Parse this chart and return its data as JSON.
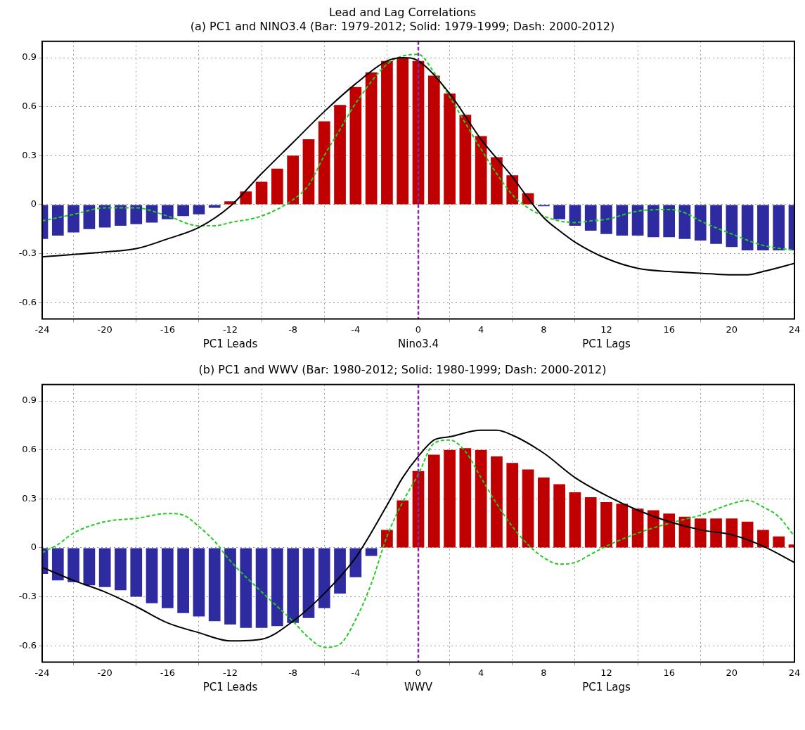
{
  "chart_data": [
    {
      "type": "bar",
      "title": "Lead and Lag Correlations",
      "subtitle": "(a) PC1 and NINO3.4 (Bar: 1979-2012; Solid: 1979-1999; Dash: 2000-2012)",
      "xlabel": "Nino3.4",
      "annotations": [
        "PC1 Leads",
        "PC1 Lags"
      ],
      "x": [
        -24,
        -23,
        -22,
        -21,
        -20,
        -19,
        -18,
        -17,
        -16,
        -15,
        -14,
        -13,
        -12,
        -11,
        -10,
        -9,
        -8,
        -7,
        -6,
        -5,
        -4,
        -3,
        -2,
        -1,
        0,
        1,
        2,
        3,
        4,
        5,
        6,
        7,
        8,
        9,
        10,
        11,
        12,
        13,
        14,
        15,
        16,
        17,
        18,
        19,
        20,
        21,
        22,
        23,
        24
      ],
      "series": [
        {
          "values": [
            -0.21,
            -0.19,
            -0.17,
            -0.15,
            -0.14,
            -0.13,
            -0.12,
            -0.11,
            -0.09,
            -0.07,
            -0.06,
            -0.02,
            0.02,
            0.08,
            0.14,
            0.22,
            0.3,
            0.4,
            0.51,
            0.61,
            0.72,
            0.81,
            0.88,
            0.9,
            0.88,
            0.79,
            0.68,
            0.55,
            0.42,
            0.29,
            0.18,
            0.07,
            -0.01,
            -0.09,
            -0.13,
            -0.16,
            -0.18,
            -0.19,
            -0.19,
            -0.2,
            -0.2,
            -0.21,
            -0.22,
            -0.24,
            -0.26,
            -0.28,
            -0.28,
            -0.28,
            -0.28
          ],
          "colors": [
            "#2e2aa0",
            "#2e2aa0",
            "#2e2aa0",
            "#2e2aa0",
            "#2e2aa0",
            "#2e2aa0",
            "#2e2aa0",
            "#2e2aa0",
            "#2e2aa0",
            "#2e2aa0",
            "#2e2aa0",
            "#2e2aa0",
            "#c00000",
            "#c00000",
            "#c00000",
            "#c00000",
            "#c00000",
            "#c00000",
            "#c00000",
            "#c00000",
            "#c00000",
            "#c00000",
            "#c00000",
            "#c00000",
            "#c00000",
            "#c00000",
            "#c00000",
            "#c00000",
            "#c00000",
            "#c00000",
            "#c00000",
            "#c00000",
            "#2e2aa0",
            "#2e2aa0",
            "#2e2aa0",
            "#2e2aa0",
            "#2e2aa0",
            "#2e2aa0",
            "#2e2aa0",
            "#2e2aa0",
            "#2e2aa0",
            "#2e2aa0",
            "#2e2aa0",
            "#2e2aa0",
            "#2e2aa0",
            "#2e2aa0",
            "#2e2aa0",
            "#2e2aa0",
            "#2e2aa0"
          ]
        },
        {
          "type": "line",
          "color": "#000000",
          "line_style": "solid",
          "x": [
            -24,
            -20,
            -18,
            -16,
            -14,
            -12,
            -10,
            -8,
            -6,
            -4,
            -2,
            -1,
            0,
            2,
            4,
            6,
            7,
            8,
            9,
            10,
            12,
            14,
            16,
            18,
            20,
            21,
            22,
            24
          ],
          "values": [
            -0.32,
            -0.29,
            -0.27,
            -0.21,
            -0.14,
            -0.01,
            0.19,
            0.38,
            0.57,
            0.74,
            0.88,
            0.9,
            0.88,
            0.68,
            0.4,
            0.17,
            0.04,
            -0.08,
            -0.16,
            -0.23,
            -0.33,
            -0.39,
            -0.41,
            -0.42,
            -0.43,
            -0.43,
            -0.41,
            -0.36
          ]
        },
        {
          "type": "line",
          "color": "#22cc22",
          "line_style": "dashed",
          "x": [
            -24,
            -22,
            -20,
            -18,
            -16,
            -14,
            -13,
            -12,
            -10,
            -8,
            -7,
            -6,
            -5,
            -4,
            -2,
            -1,
            0,
            1,
            2,
            3,
            4,
            5,
            6,
            7,
            8,
            9,
            10,
            11,
            12,
            14,
            16,
            17,
            18,
            20,
            22,
            24
          ],
          "values": [
            -0.1,
            -0.06,
            -0.02,
            -0.02,
            -0.07,
            -0.13,
            -0.13,
            -0.11,
            -0.07,
            0.03,
            0.12,
            0.3,
            0.46,
            0.62,
            0.86,
            0.91,
            0.92,
            0.81,
            0.66,
            0.5,
            0.34,
            0.19,
            0.06,
            -0.02,
            -0.07,
            -0.1,
            -0.11,
            -0.1,
            -0.09,
            -0.04,
            -0.03,
            -0.05,
            -0.1,
            -0.18,
            -0.25,
            -0.28
          ]
        }
      ],
      "xlim": [
        -24,
        24
      ],
      "xticks": [
        -24,
        -20,
        -16,
        -12,
        -8,
        -4,
        0,
        4,
        8,
        12,
        16,
        20,
        24
      ],
      "ylim": [
        -0.7,
        1.0
      ],
      "yticks": [
        -0.6,
        -0.3,
        0,
        0.3,
        0.6,
        0.9
      ],
      "grid": true,
      "ref_lines": [
        {
          "axis": "x",
          "value": 0,
          "color": "#8a2aa8",
          "line_style": "dashed"
        }
      ]
    },
    {
      "type": "bar",
      "title": "(b) PC1 and WWV (Bar: 1980-2012; Solid: 1980-1999; Dash: 2000-2012)",
      "xlabel": "WWV",
      "annotations": [
        "PC1 Leads",
        "PC1 Lags"
      ],
      "x": [
        -24,
        -23,
        -22,
        -21,
        -20,
        -19,
        -18,
        -17,
        -16,
        -15,
        -14,
        -13,
        -12,
        -11,
        -10,
        -9,
        -8,
        -7,
        -6,
        -5,
        -4,
        -3,
        -2,
        -1,
        0,
        1,
        2,
        3,
        4,
        5,
        6,
        7,
        8,
        9,
        10,
        11,
        12,
        13,
        14,
        15,
        16,
        17,
        18,
        19,
        20,
        21,
        22,
        23,
        24
      ],
      "series": [
        {
          "values": [
            -0.16,
            -0.2,
            -0.21,
            -0.23,
            -0.24,
            -0.26,
            -0.3,
            -0.34,
            -0.37,
            -0.4,
            -0.42,
            -0.45,
            -0.47,
            -0.49,
            -0.49,
            -0.48,
            -0.46,
            -0.43,
            -0.37,
            -0.28,
            -0.18,
            -0.05,
            0.11,
            0.29,
            0.47,
            0.57,
            0.6,
            0.61,
            0.6,
            0.56,
            0.52,
            0.48,
            0.43,
            0.39,
            0.34,
            0.31,
            0.28,
            0.27,
            0.24,
            0.23,
            0.21,
            0.19,
            0.18,
            0.18,
            0.18,
            0.16,
            0.11,
            0.07,
            0.02
          ],
          "colors": [
            "#2e2aa0",
            "#2e2aa0",
            "#2e2aa0",
            "#2e2aa0",
            "#2e2aa0",
            "#2e2aa0",
            "#2e2aa0",
            "#2e2aa0",
            "#2e2aa0",
            "#2e2aa0",
            "#2e2aa0",
            "#2e2aa0",
            "#2e2aa0",
            "#2e2aa0",
            "#2e2aa0",
            "#2e2aa0",
            "#2e2aa0",
            "#2e2aa0",
            "#2e2aa0",
            "#2e2aa0",
            "#2e2aa0",
            "#2e2aa0",
            "#c00000",
            "#c00000",
            "#c00000",
            "#c00000",
            "#c00000",
            "#c00000",
            "#c00000",
            "#c00000",
            "#c00000",
            "#c00000",
            "#c00000",
            "#c00000",
            "#c00000",
            "#c00000",
            "#c00000",
            "#c00000",
            "#c00000",
            "#c00000",
            "#c00000",
            "#c00000",
            "#c00000",
            "#c00000",
            "#c00000",
            "#c00000",
            "#c00000",
            "#c00000",
            "#c00000"
          ]
        },
        {
          "type": "line",
          "color": "#000000",
          "line_style": "solid",
          "x": [
            -24,
            -22,
            -20,
            -18,
            -16,
            -14,
            -12,
            -10,
            -8,
            -6,
            -4,
            -2,
            -1,
            0,
            1,
            2,
            4,
            5,
            6,
            8,
            10,
            12,
            14,
            16,
            18,
            20,
            22,
            24
          ],
          "values": [
            -0.12,
            -0.2,
            -0.27,
            -0.36,
            -0.46,
            -0.52,
            -0.57,
            -0.56,
            -0.45,
            -0.28,
            -0.06,
            0.26,
            0.43,
            0.56,
            0.66,
            0.68,
            0.72,
            0.72,
            0.69,
            0.58,
            0.43,
            0.32,
            0.23,
            0.16,
            0.11,
            0.08,
            0.01,
            -0.09
          ]
        },
        {
          "type": "line",
          "color": "#22cc22",
          "line_style": "dashed",
          "x": [
            -24,
            -23,
            -22,
            -20,
            -18,
            -16,
            -15,
            -14,
            -13,
            -12,
            -10,
            -8,
            -7,
            -6,
            -5,
            -4,
            -3,
            -2,
            -1,
            0,
            1,
            2,
            3,
            4,
            5,
            6,
            7,
            8,
            9,
            10,
            11,
            12,
            14,
            16,
            18,
            20,
            21,
            22,
            23,
            24
          ],
          "values": [
            -0.03,
            0.02,
            0.09,
            0.16,
            0.18,
            0.21,
            0.2,
            0.13,
            0.04,
            -0.08,
            -0.27,
            -0.45,
            -0.55,
            -0.61,
            -0.59,
            -0.44,
            -0.22,
            0.07,
            0.28,
            0.45,
            0.64,
            0.66,
            0.59,
            0.43,
            0.27,
            0.13,
            0.02,
            -0.06,
            -0.1,
            -0.09,
            -0.04,
            0.01,
            0.09,
            0.15,
            0.2,
            0.27,
            0.29,
            0.25,
            0.19,
            0.07
          ]
        }
      ],
      "xlim": [
        -24,
        24
      ],
      "xticks": [
        -24,
        -20,
        -16,
        -12,
        -8,
        -4,
        0,
        4,
        8,
        12,
        16,
        20,
        24
      ],
      "ylim": [
        -0.7,
        1.0
      ],
      "yticks": [
        -0.6,
        -0.3,
        0,
        0.3,
        0.6,
        0.9
      ],
      "grid": true,
      "ref_lines": [
        {
          "axis": "x",
          "value": 0,
          "color": "#8a2aa8",
          "line_style": "dashed"
        }
      ]
    }
  ]
}
